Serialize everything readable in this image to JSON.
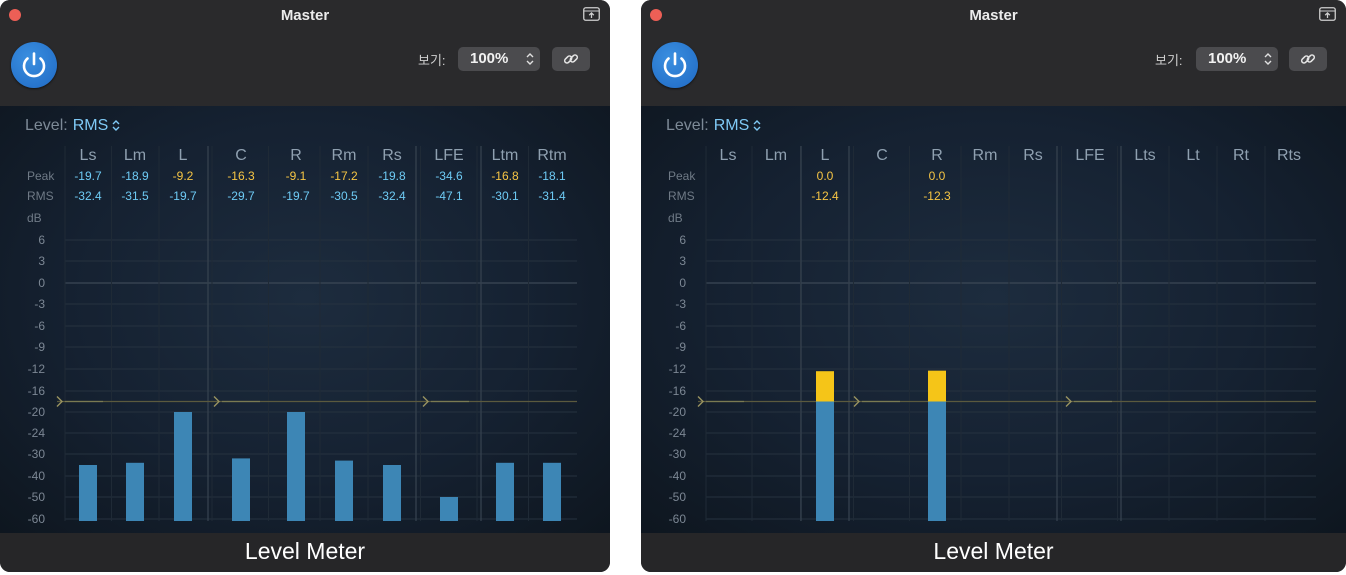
{
  "windows": [
    {
      "title": "Master",
      "view_label": "보기:",
      "zoom": "100%",
      "level_label": "Level:",
      "level_mode": "RMS",
      "row_labels": {
        "peak": "Peak",
        "rms": "RMS",
        "db": "dB"
      },
      "scale_labels": [
        "6",
        "3",
        "0",
        "-3",
        "-6",
        "-9",
        "-12",
        "-16",
        "-20",
        "-24",
        "-30",
        "-40",
        "-50",
        "-60"
      ],
      "channels": [
        {
          "name": "Ls",
          "peak": "-19.7",
          "rms": "-32.4",
          "peak_color": "#6ecbf5",
          "rms_color": "#6ecbf5",
          "level": -35
        },
        {
          "name": "Lm",
          "peak": "-18.9",
          "rms": "-31.5",
          "peak_color": "#6ecbf5",
          "rms_color": "#6ecbf5",
          "level": -34
        },
        {
          "name": "L",
          "peak": "-9.2",
          "rms": "-19.7",
          "peak_color": "#f6c544",
          "rms_color": "#6ecbf5",
          "level": -20
        },
        {
          "name": "C",
          "peak": "-16.3",
          "rms": "-29.7",
          "peak_color": "#f6c544",
          "rms_color": "#6ecbf5",
          "level": -32
        },
        {
          "name": "R",
          "peak": "-9.1",
          "rms": "-19.7",
          "peak_color": "#f6c544",
          "rms_color": "#6ecbf5",
          "level": -20
        },
        {
          "name": "Rm",
          "peak": "-17.2",
          "rms": "-30.5",
          "peak_color": "#f6c544",
          "rms_color": "#6ecbf5",
          "level": -33
        },
        {
          "name": "Rs",
          "peak": "-19.8",
          "rms": "-32.4",
          "peak_color": "#6ecbf5",
          "rms_color": "#6ecbf5",
          "level": -35
        },
        {
          "name": "LFE",
          "peak": "-34.6",
          "rms": "-47.1",
          "peak_color": "#6ecbf5",
          "rms_color": "#6ecbf5",
          "level": -50
        },
        {
          "name": "Ltm",
          "peak": "-16.8",
          "rms": "-30.1",
          "peak_color": "#f6c544",
          "rms_color": "#6ecbf5",
          "level": -34
        },
        {
          "name": "Rtm",
          "peak": "-18.1",
          "rms": "-31.4",
          "peak_color": "#6ecbf5",
          "rms_color": "#6ecbf5",
          "level": -34
        }
      ],
      "group_dividers_after": [
        "L",
        "R",
        "LFE"
      ],
      "target_level": -18,
      "target_markers_after": [
        "",
        "L",
        "Rs"
      ],
      "footer_label": "Level Meter"
    },
    {
      "title": "Master",
      "view_label": "보기:",
      "zoom": "100%",
      "level_label": "Level:",
      "level_mode": "RMS",
      "row_labels": {
        "peak": "Peak",
        "rms": "RMS",
        "db": "dB"
      },
      "scale_labels": [
        "6",
        "3",
        "0",
        "-3",
        "-6",
        "-9",
        "-12",
        "-16",
        "-20",
        "-24",
        "-30",
        "-40",
        "-50",
        "-60"
      ],
      "channels": [
        {
          "name": "Ls",
          "peak": "",
          "rms": "",
          "peak_color": "#f6c544",
          "rms_color": "#f6c544",
          "level": null
        },
        {
          "name": "Lm",
          "peak": "",
          "rms": "",
          "peak_color": "#f6c544",
          "rms_color": "#f6c544",
          "level": null
        },
        {
          "name": "L",
          "peak": "0.0",
          "rms": "-12.4",
          "peak_color": "#f6c544",
          "rms_color": "#f6c544",
          "level": -12.4
        },
        {
          "name": "C",
          "peak": "",
          "rms": "",
          "peak_color": "#f6c544",
          "rms_color": "#f6c544",
          "level": null
        },
        {
          "name": "R",
          "peak": "0.0",
          "rms": "-12.3",
          "peak_color": "#f6c544",
          "rms_color": "#f6c544",
          "level": -12.3
        },
        {
          "name": "Rm",
          "peak": "",
          "rms": "",
          "peak_color": "#f6c544",
          "rms_color": "#f6c544",
          "level": null
        },
        {
          "name": "Rs",
          "peak": "",
          "rms": "",
          "peak_color": "#f6c544",
          "rms_color": "#f6c544",
          "level": null
        },
        {
          "name": "LFE",
          "peak": "",
          "rms": "",
          "peak_color": "#f6c544",
          "rms_color": "#f6c544",
          "level": null
        },
        {
          "name": "Lts",
          "peak": "",
          "rms": "",
          "peak_color": "#f6c544",
          "rms_color": "#f6c544",
          "level": null
        },
        {
          "name": "Lt",
          "peak": "",
          "rms": "",
          "peak_color": "#f6c544",
          "rms_color": "#f6c544",
          "level": null
        },
        {
          "name": "Rt",
          "peak": "",
          "rms": "",
          "peak_color": "#f6c544",
          "rms_color": "#f6c544",
          "level": null
        },
        {
          "name": "Rts",
          "peak": "",
          "rms": "",
          "peak_color": "#f6c544",
          "rms_color": "#f6c544",
          "level": null
        }
      ],
      "group_dividers_after": [
        "Lm",
        "C",
        "Rs",
        "LFE"
      ],
      "target_level": -18,
      "target_markers_after": [
        "",
        "L",
        "Rs"
      ],
      "footer_label": "Level Meter"
    }
  ],
  "colors": {
    "meter_blue": "#3d86b5",
    "meter_over": "#f5c518",
    "text_blue": "#6ecbf5",
    "text_yellow": "#f6c544"
  }
}
